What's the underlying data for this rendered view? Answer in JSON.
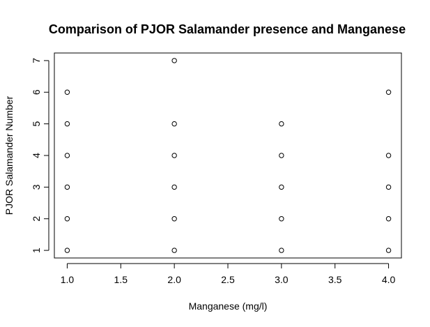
{
  "chart_data": {
    "type": "scatter",
    "title": "Comparison of PJOR Salamander presence and Manganese",
    "xlabel": "Manganese (mg/l)",
    "ylabel": "PJOR Salamander Number",
    "xlim": [
      0.88,
      4.12
    ],
    "ylim": [
      0.76,
      7.24
    ],
    "x_ticks": [
      1.0,
      1.5,
      2.0,
      2.5,
      3.0,
      3.5,
      4.0
    ],
    "x_tick_labels": [
      "1.0",
      "1.5",
      "2.0",
      "2.5",
      "3.0",
      "3.5",
      "4.0"
    ],
    "y_ticks": [
      1,
      2,
      3,
      4,
      5,
      6,
      7
    ],
    "y_tick_labels": [
      "1",
      "2",
      "3",
      "4",
      "5",
      "6",
      "7"
    ],
    "grid": false,
    "marker": "open-circle",
    "marker_color": "#000000",
    "points": [
      {
        "x": 1.0,
        "y": 1
      },
      {
        "x": 1.0,
        "y": 2
      },
      {
        "x": 1.0,
        "y": 3
      },
      {
        "x": 1.0,
        "y": 4
      },
      {
        "x": 1.0,
        "y": 5
      },
      {
        "x": 1.0,
        "y": 6
      },
      {
        "x": 2.0,
        "y": 1
      },
      {
        "x": 2.0,
        "y": 2
      },
      {
        "x": 2.0,
        "y": 3
      },
      {
        "x": 2.0,
        "y": 4
      },
      {
        "x": 2.0,
        "y": 5
      },
      {
        "x": 2.0,
        "y": 7
      },
      {
        "x": 3.0,
        "y": 1
      },
      {
        "x": 3.0,
        "y": 2
      },
      {
        "x": 3.0,
        "y": 3
      },
      {
        "x": 3.0,
        "y": 4
      },
      {
        "x": 3.0,
        "y": 5
      },
      {
        "x": 4.0,
        "y": 1
      },
      {
        "x": 4.0,
        "y": 2
      },
      {
        "x": 4.0,
        "y": 3
      },
      {
        "x": 4.0,
        "y": 4
      },
      {
        "x": 4.0,
        "y": 6
      }
    ]
  }
}
